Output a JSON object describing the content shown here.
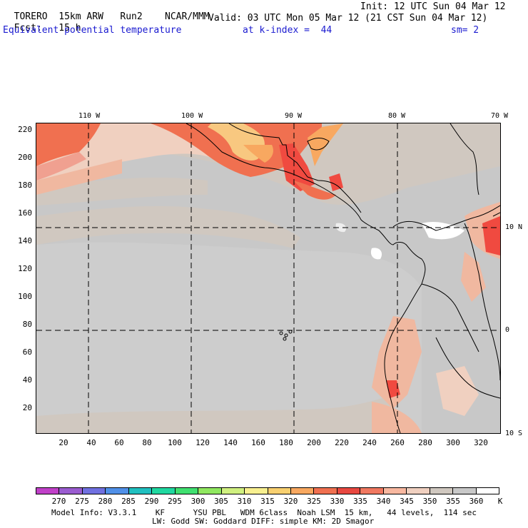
{
  "header": {
    "model": "TORERO",
    "resolution": "15km ARW",
    "run": "Run2",
    "org": "NCAR/MMM",
    "init": "Init: 12 UTC Sun 04 Mar 12",
    "fcst_label": "Fcst:",
    "fcst_value": "15 h",
    "valid": "Valid: 03 UTC Mon 05 Mar 12 (21 CST Sun 04 Mar 12)",
    "field": "Equivalent potential temperature",
    "level": "at k-index =  44",
    "smooth": "sm= 2"
  },
  "top_lon_labels": [
    "110 W",
    "100 W",
    "90 W",
    "80 W",
    "70 W"
  ],
  "right_lat_labels": [
    "10 N",
    "0",
    "10 S"
  ],
  "y_ticks": [
    "220",
    "200",
    "180",
    "160",
    "140",
    "120",
    "100",
    "80",
    "60",
    "40",
    "20"
  ],
  "x_ticks": [
    "20",
    "40",
    "60",
    "80",
    "100",
    "120",
    "140",
    "160",
    "180",
    "200",
    "220",
    "240",
    "260",
    "280",
    "300",
    "320"
  ],
  "colorbar": {
    "labels": [
      "270",
      "275",
      "280",
      "285",
      "290",
      "295",
      "300",
      "305",
      "310",
      "315",
      "320",
      "325",
      "330",
      "335",
      "340",
      "345",
      "350",
      "355",
      "360"
    ],
    "unit": "K",
    "colors": [
      "#c040c8",
      "#9a5cd0",
      "#7070e0",
      "#5090e8",
      "#20c0c0",
      "#20d8a0",
      "#40e070",
      "#90e860",
      "#d0f080",
      "#f8f090",
      "#f8d070",
      "#f8a860",
      "#f07050",
      "#e84840",
      "#f07860",
      "#f8b8a0",
      "#f0d0c0",
      "#d0c8c0",
      "#c8c8c8",
      "#ffffff"
    ]
  },
  "footer": {
    "line1": "Model Info: V3.3.1    KF      YSU PBL   WDM 6class  Noah LSM  15 km,   44 levels,  114 sec",
    "line2": "LW: Godd SW: Goddard DIFF: simple KM: 2D Smagor"
  }
}
